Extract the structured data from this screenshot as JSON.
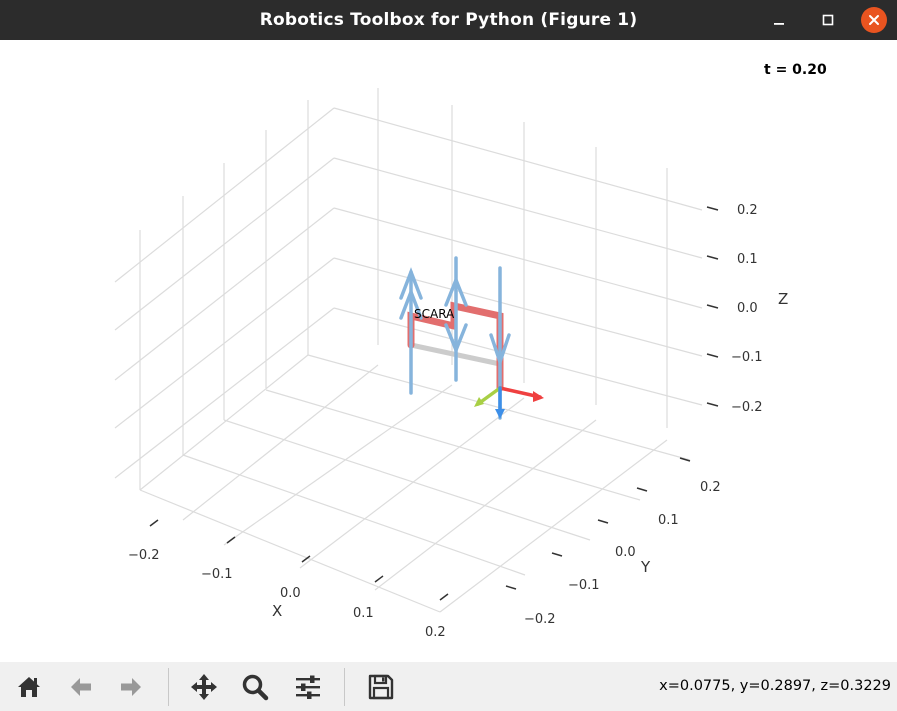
{
  "window": {
    "title": "Robotics Toolbox for Python (Figure 1)"
  },
  "figure": {
    "time_label": "t = 0.20",
    "robot_label": "SCARA",
    "axes": {
      "x": {
        "label": "X",
        "ticks": [
          "−0.2",
          "−0.1",
          "0.0",
          "0.1",
          "0.2"
        ]
      },
      "y": {
        "label": "Y",
        "ticks": [
          "0.2",
          "0.1",
          "0.0",
          "−0.1",
          "−0.2"
        ]
      },
      "z": {
        "label": "Z",
        "ticks": [
          "0.2",
          "0.1",
          "0.0",
          "−0.1",
          "−0.2"
        ]
      }
    },
    "colors": {
      "link": "#e06666",
      "joint_axis": "#86b4dc",
      "base_shadow": "#cccccc",
      "frame_x": "#ef4040",
      "frame_y": "#a8cf45",
      "frame_z": "#3d8fe8"
    }
  },
  "toolbar": {
    "items": [
      "home-icon",
      "back-arrow-icon",
      "forward-arrow-icon",
      "pan-icon",
      "zoom-icon",
      "configure-subplots-icon",
      "save-icon"
    ],
    "coordinates": "x=0.0775, y=0.2897, z=0.3229"
  }
}
